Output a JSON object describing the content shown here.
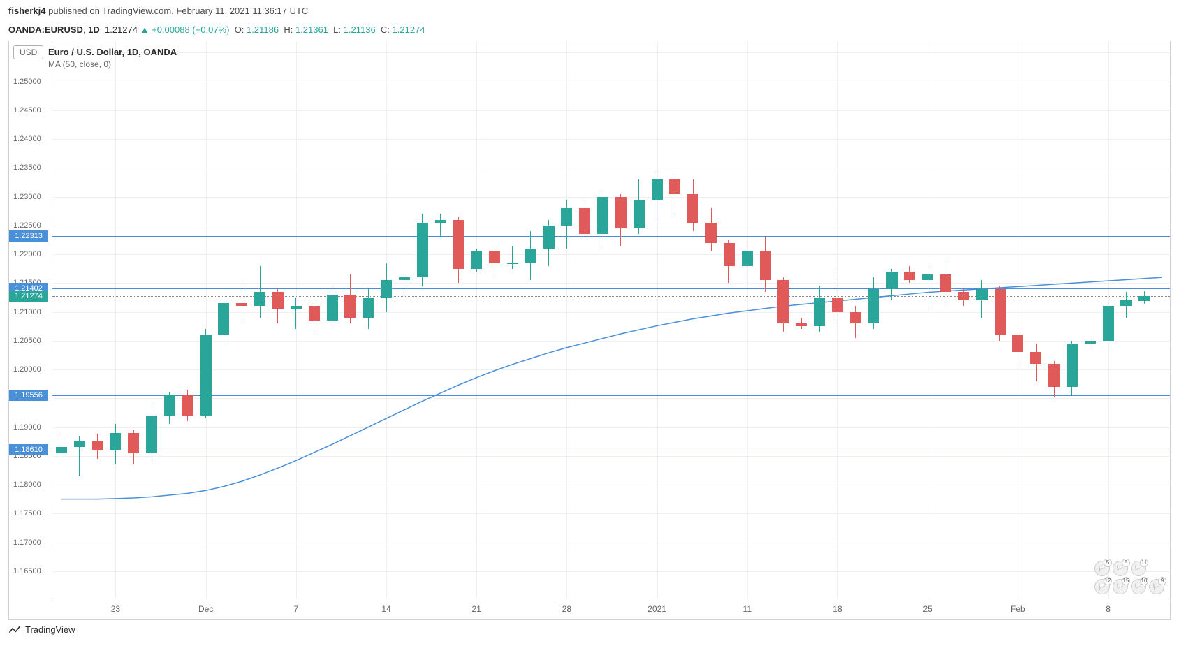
{
  "header": {
    "username": "fisherkj4",
    "published_text": "published on",
    "site": "TradingView.com",
    "date": "February 11, 2021 11:36:17 UTC"
  },
  "subheader": {
    "symbol": "OANDA:EURUSD",
    "interval": "1D",
    "price": "1.21274",
    "change": "+0.00088",
    "change_pct": "(+0.07%)",
    "o_label": "O:",
    "o": "1.21186",
    "h_label": "H:",
    "h": "1.21361",
    "l_label": "L:",
    "l": "1.21136",
    "c_label": "C:",
    "c": "1.21274"
  },
  "chart": {
    "usd_badge": "USD",
    "title": "Euro / U.S. Dollar, 1D, OANDA",
    "ma_label": "MA (50, close, 0)",
    "y_min": 1.16,
    "y_max": 1.257,
    "y_ticks": [
      1.165,
      1.17,
      1.175,
      1.18,
      1.185,
      1.19,
      1.195,
      1.2,
      1.205,
      1.21,
      1.215,
      1.22,
      1.225,
      1.23,
      1.235,
      1.24,
      1.245,
      1.25,
      1.255
    ],
    "y_tick_labels": [
      "1.16500",
      "1.17000",
      "1.17500",
      "1.18000",
      "1.18500",
      "1.19000",
      "1.19500",
      "1.20000",
      "1.20500",
      "1.21000",
      "1.21500",
      "1.22000",
      "1.22500",
      "1.23000",
      "1.23500",
      "1.24000",
      "1.24500",
      "1.25000",
      "1.25500"
    ],
    "x_ticks": [
      3,
      8,
      13,
      18,
      23,
      28,
      33,
      38,
      43,
      48,
      53,
      58
    ],
    "x_tick_labels": [
      "23",
      "Dec",
      "7",
      "14",
      "21",
      "28",
      "2021",
      "11",
      "18",
      "25",
      "Feb",
      "8"
    ],
    "n_slots": 62,
    "hlines": [
      {
        "value": 1.22313,
        "label": "1.22313",
        "color": "blue"
      },
      {
        "value": 1.21402,
        "label": "1.21402",
        "color": "blue"
      },
      {
        "value": 1.21274,
        "label": "1.21274",
        "color": "green",
        "dashed": true
      },
      {
        "value": 1.19556,
        "label": "1.19556",
        "color": "blue"
      },
      {
        "value": 1.1861,
        "label": "1.18610",
        "color": "blue"
      }
    ],
    "candle_up_color": "#2aa59a",
    "candle_down_color": "#e05a5a",
    "candle_width": 16,
    "grid_color": "#f0f0f0",
    "candles": [
      {
        "i": 0,
        "o": 1.1855,
        "h": 1.189,
        "l": 1.1846,
        "c": 1.1865
      },
      {
        "i": 1,
        "o": 1.1865,
        "h": 1.1885,
        "l": 1.1815,
        "c": 1.1875
      },
      {
        "i": 2,
        "o": 1.1875,
        "h": 1.1888,
        "l": 1.1845,
        "c": 1.186
      },
      {
        "i": 3,
        "o": 1.186,
        "h": 1.1906,
        "l": 1.1835,
        "c": 1.189
      },
      {
        "i": 4,
        "o": 1.189,
        "h": 1.1895,
        "l": 1.1835,
        "c": 1.1855
      },
      {
        "i": 5,
        "o": 1.1855,
        "h": 1.194,
        "l": 1.1845,
        "c": 1.192
      },
      {
        "i": 6,
        "o": 1.192,
        "h": 1.196,
        "l": 1.1905,
        "c": 1.1955
      },
      {
        "i": 7,
        "o": 1.1955,
        "h": 1.1965,
        "l": 1.191,
        "c": 1.192
      },
      {
        "i": 8,
        "o": 1.192,
        "h": 1.207,
        "l": 1.1915,
        "c": 1.206
      },
      {
        "i": 9,
        "o": 1.206,
        "h": 1.2125,
        "l": 1.204,
        "c": 1.2115
      },
      {
        "i": 10,
        "o": 1.2115,
        "h": 1.215,
        "l": 1.2085,
        "c": 1.211
      },
      {
        "i": 11,
        "o": 1.211,
        "h": 1.218,
        "l": 1.209,
        "c": 1.2135
      },
      {
        "i": 12,
        "o": 1.2135,
        "h": 1.214,
        "l": 1.208,
        "c": 1.2105
      },
      {
        "i": 13,
        "o": 1.2105,
        "h": 1.2125,
        "l": 1.207,
        "c": 1.211
      },
      {
        "i": 14,
        "o": 1.211,
        "h": 1.212,
        "l": 1.2065,
        "c": 1.2085
      },
      {
        "i": 15,
        "o": 1.2085,
        "h": 1.2145,
        "l": 1.2075,
        "c": 1.213
      },
      {
        "i": 16,
        "o": 1.213,
        "h": 1.2165,
        "l": 1.208,
        "c": 1.209
      },
      {
        "i": 17,
        "o": 1.209,
        "h": 1.214,
        "l": 1.207,
        "c": 1.2125
      },
      {
        "i": 18,
        "o": 1.2125,
        "h": 1.2185,
        "l": 1.21,
        "c": 1.2155
      },
      {
        "i": 19,
        "o": 1.2155,
        "h": 1.2165,
        "l": 1.213,
        "c": 1.216
      },
      {
        "i": 20,
        "o": 1.216,
        "h": 1.227,
        "l": 1.2145,
        "c": 1.2255
      },
      {
        "i": 21,
        "o": 1.2255,
        "h": 1.227,
        "l": 1.223,
        "c": 1.226
      },
      {
        "i": 22,
        "o": 1.226,
        "h": 1.2265,
        "l": 1.215,
        "c": 1.2175
      },
      {
        "i": 23,
        "o": 1.2175,
        "h": 1.221,
        "l": 1.217,
        "c": 1.2205
      },
      {
        "i": 24,
        "o": 1.2205,
        "h": 1.221,
        "l": 1.2165,
        "c": 1.2185
      },
      {
        "i": 25,
        "o": 1.2185,
        "h": 1.2215,
        "l": 1.2175,
        "c": 1.2185
      },
      {
        "i": 26,
        "o": 1.2185,
        "h": 1.224,
        "l": 1.2155,
        "c": 1.221
      },
      {
        "i": 27,
        "o": 1.221,
        "h": 1.226,
        "l": 1.218,
        "c": 1.225
      },
      {
        "i": 28,
        "o": 1.225,
        "h": 1.2295,
        "l": 1.221,
        "c": 1.228
      },
      {
        "i": 29,
        "o": 1.228,
        "h": 1.23,
        "l": 1.2225,
        "c": 1.2235
      },
      {
        "i": 30,
        "o": 1.2235,
        "h": 1.231,
        "l": 1.221,
        "c": 1.23
      },
      {
        "i": 31,
        "o": 1.23,
        "h": 1.2305,
        "l": 1.2215,
        "c": 1.2245
      },
      {
        "i": 32,
        "o": 1.2245,
        "h": 1.233,
        "l": 1.2235,
        "c": 1.2295
      },
      {
        "i": 33,
        "o": 1.2295,
        "h": 1.2345,
        "l": 1.226,
        "c": 1.233
      },
      {
        "i": 34,
        "o": 1.233,
        "h": 1.2335,
        "l": 1.227,
        "c": 1.2305
      },
      {
        "i": 35,
        "o": 1.2305,
        "h": 1.233,
        "l": 1.224,
        "c": 1.2255
      },
      {
        "i": 36,
        "o": 1.2255,
        "h": 1.228,
        "l": 1.2205,
        "c": 1.222
      },
      {
        "i": 37,
        "o": 1.222,
        "h": 1.2225,
        "l": 1.215,
        "c": 1.218
      },
      {
        "i": 38,
        "o": 1.218,
        "h": 1.222,
        "l": 1.215,
        "c": 1.2205
      },
      {
        "i": 39,
        "o": 1.2205,
        "h": 1.223,
        "l": 1.2135,
        "c": 1.2155
      },
      {
        "i": 40,
        "o": 1.2155,
        "h": 1.216,
        "l": 1.2065,
        "c": 1.208
      },
      {
        "i": 41,
        "o": 1.208,
        "h": 1.209,
        "l": 1.207,
        "c": 1.2075
      },
      {
        "i": 42,
        "o": 1.2075,
        "h": 1.2145,
        "l": 1.2065,
        "c": 1.2125
      },
      {
        "i": 43,
        "o": 1.2125,
        "h": 1.217,
        "l": 1.2085,
        "c": 1.21
      },
      {
        "i": 44,
        "o": 1.21,
        "h": 1.211,
        "l": 1.2055,
        "c": 1.208
      },
      {
        "i": 45,
        "o": 1.208,
        "h": 1.216,
        "l": 1.207,
        "c": 1.214
      },
      {
        "i": 46,
        "o": 1.214,
        "h": 1.2175,
        "l": 1.212,
        "c": 1.217
      },
      {
        "i": 47,
        "o": 1.217,
        "h": 1.218,
        "l": 1.215,
        "c": 1.2155
      },
      {
        "i": 48,
        "o": 1.2155,
        "h": 1.218,
        "l": 1.2105,
        "c": 1.2165
      },
      {
        "i": 49,
        "o": 1.2165,
        "h": 1.219,
        "l": 1.2115,
        "c": 1.2135
      },
      {
        "i": 50,
        "o": 1.2135,
        "h": 1.214,
        "l": 1.211,
        "c": 1.212
      },
      {
        "i": 51,
        "o": 1.212,
        "h": 1.2155,
        "l": 1.209,
        "c": 1.214
      },
      {
        "i": 52,
        "o": 1.214,
        "h": 1.2145,
        "l": 1.205,
        "c": 1.206
      },
      {
        "i": 53,
        "o": 1.206,
        "h": 1.2065,
        "l": 1.2005,
        "c": 1.203
      },
      {
        "i": 54,
        "o": 1.203,
        "h": 1.2045,
        "l": 1.198,
        "c": 1.201
      },
      {
        "i": 55,
        "o": 1.201,
        "h": 1.2015,
        "l": 1.1952,
        "c": 1.197
      },
      {
        "i": 56,
        "o": 1.197,
        "h": 1.205,
        "l": 1.1955,
        "c": 1.2045
      },
      {
        "i": 57,
        "o": 1.2045,
        "h": 1.2055,
        "l": 1.2035,
        "c": 1.205
      },
      {
        "i": 58,
        "o": 1.205,
        "h": 1.2125,
        "l": 1.204,
        "c": 1.211
      },
      {
        "i": 59,
        "o": 1.211,
        "h": 1.2135,
        "l": 1.209,
        "c": 1.212
      },
      {
        "i": 60,
        "o": 1.21186,
        "h": 1.21361,
        "l": 1.21136,
        "c": 1.21274
      }
    ],
    "ma_points": [
      1.1775,
      1.1775,
      1.1775,
      1.1776,
      1.1777,
      1.1779,
      1.1782,
      1.1785,
      1.179,
      1.1797,
      1.1806,
      1.1817,
      1.1829,
      1.1842,
      1.1856,
      1.187,
      1.1885,
      1.19,
      1.1915,
      1.193,
      1.1945,
      1.1959,
      1.1973,
      1.1986,
      1.1998,
      1.2009,
      1.2019,
      1.2029,
      1.2038,
      1.2046,
      1.2054,
      1.2062,
      1.2069,
      1.2076,
      1.2082,
      1.2088,
      1.2093,
      1.2098,
      1.2102,
      1.2106,
      1.211,
      1.2113,
      1.2116,
      1.2119,
      1.2122,
      1.2125,
      1.2128,
      1.2131,
      1.2134,
      1.2136,
      1.2138,
      1.214,
      1.2142,
      1.2144,
      1.2146,
      1.2148,
      1.215,
      1.2152,
      1.2154,
      1.2156,
      1.2158,
      1.216
    ],
    "ma_color": "#4a90d9"
  },
  "events": {
    "row1": [
      {
        "n": "5"
      },
      {
        "n": "5"
      },
      {
        "n": "11"
      }
    ],
    "row2": [
      {
        "n": "12"
      },
      {
        "n": "15"
      },
      {
        "n": "10"
      },
      {
        "n": "9"
      }
    ]
  },
  "footer": {
    "brand": "TradingView"
  }
}
